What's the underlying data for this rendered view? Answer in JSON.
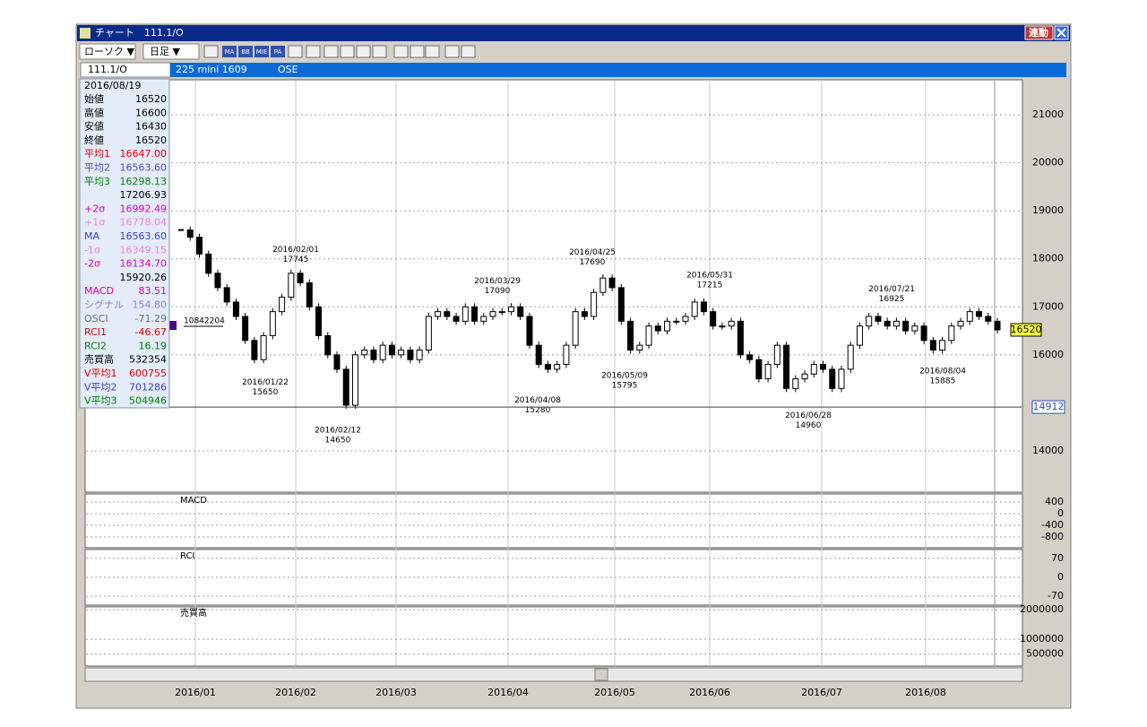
{
  "window": {
    "title": "チャート　111.1/O",
    "link_button": "連動"
  },
  "toolbar": {
    "chart_type": "ローソク ▼",
    "period": "日足 ▼",
    "icons": [
      "MA",
      "BB",
      "MIE",
      "PA"
    ]
  },
  "symbol_bar": {
    "code": "111.1/O",
    "name": "225 mini 1609",
    "exchange": "OSE"
  },
  "info_panel": {
    "date": "2016/08/19",
    "rows": [
      {
        "label": "始値",
        "value": "16520",
        "color": "#000000"
      },
      {
        "label": "高値",
        "value": "16600",
        "color": "#000000"
      },
      {
        "label": "安値",
        "value": "16430",
        "color": "#000000"
      },
      {
        "label": "終値",
        "value": "16520",
        "color": "#000000"
      },
      {
        "label": "平均1",
        "value": "16647.00",
        "color": "#e00000"
      },
      {
        "label": "平均2",
        "value": "16563.60",
        "color": "#5050c0"
      },
      {
        "label": "平均3",
        "value": "16298.13",
        "color": "#008000"
      },
      {
        "value": "17206.93",
        "color": "#000000"
      },
      {
        "label": "+2σ",
        "value": "16992.49",
        "color": "#e000c0"
      },
      {
        "label": "+1σ",
        "value": "16778.04",
        "color": "#f080e0"
      },
      {
        "label": "MA",
        "value": "16563.60",
        "color": "#4040c0"
      },
      {
        "label": "-1σ",
        "value": "16349.15",
        "color": "#f080e0"
      },
      {
        "label": "-2σ",
        "value": "16134.70",
        "color": "#e000c0"
      },
      {
        "value": "15920.26",
        "color": "#000000"
      },
      {
        "label": "MACD",
        "value": "83.51",
        "color": "#e000a0"
      },
      {
        "label": "シグナル",
        "value": "154.80",
        "color": "#9080e0"
      },
      {
        "label": "OSCI",
        "value": "-71.29",
        "color": "#707070"
      },
      {
        "label": "RCI1",
        "value": "-46.67",
        "color": "#e00000"
      },
      {
        "label": "RCI2",
        "value": "16.19",
        "color": "#008000"
      },
      {
        "label": "売買高",
        "value": "532354",
        "color": "#000000"
      },
      {
        "label": "V平均1",
        "value": "600755",
        "color": "#e00000"
      },
      {
        "label": "V平均2",
        "value": "701286",
        "color": "#4040c0"
      },
      {
        "label": "V平均3",
        "value": "504946",
        "color": "#008000"
      }
    ]
  },
  "price_chart": {
    "ylim": [
      13140,
      21730
    ],
    "yticks": [
      21000,
      20000,
      19000,
      18000,
      17000,
      16000,
      14000
    ],
    "closes": [
      18600,
      18450,
      18100,
      17700,
      17400,
      17100,
      16800,
      16300,
      15900,
      16400,
      16900,
      17200,
      17700,
      17500,
      17000,
      16400,
      16000,
      15700,
      14950,
      16000,
      16100,
      15900,
      16200,
      16000,
      16100,
      15900,
      16100,
      16800,
      16900,
      16800,
      16700,
      17000,
      16700,
      16800,
      16900,
      16900,
      17000,
      16800,
      16200,
      15800,
      15700,
      15800,
      16200,
      16900,
      16800,
      17300,
      17600,
      17400,
      16700,
      16100,
      16200,
      16600,
      16500,
      16700,
      16700,
      16800,
      17100,
      16900,
      16600,
      16600,
      16700,
      16000,
      15900,
      15500,
      15800,
      16200,
      15300,
      15500,
      15600,
      15800,
      15700,
      15300,
      15700,
      16200,
      16600,
      16800,
      16700,
      16600,
      16700,
      16500,
      16600,
      16300,
      16100,
      16300,
      16600,
      16700,
      16900,
      16800,
      16700,
      16520
    ],
    "cursor_price": 14912,
    "volume_marker": "10842204",
    "annotations": [
      {
        "date": "2016/01/22",
        "value": 15650,
        "kind": "low"
      },
      {
        "date": "2016/02/01",
        "value": 17745,
        "kind": "high"
      },
      {
        "date": "2016/02/12",
        "value": 14650,
        "kind": "low"
      },
      {
        "date": "2016/03/29",
        "value": 17090,
        "kind": "high"
      },
      {
        "date": "2016/04/08",
        "value": 15280,
        "kind": "low"
      },
      {
        "date": "2016/04/25",
        "value": 17690,
        "kind": "high"
      },
      {
        "date": "2016/05/09",
        "value": 15795,
        "kind": "low"
      },
      {
        "date": "2016/05/31",
        "value": 17215,
        "kind": "high"
      },
      {
        "date": "2016/06/28",
        "value": 14960,
        "kind": "low"
      },
      {
        "date": "2016/07/21",
        "value": 16925,
        "kind": "high"
      },
      {
        "date": "2016/08/04",
        "value": 15885,
        "kind": "low"
      }
    ]
  },
  "macd": {
    "title": "MACD",
    "ylim": [
      -1169,
      677
    ],
    "yticks": [
      400,
      0,
      -400,
      -800
    ]
  },
  "rci": {
    "title": "RCI",
    "ylim": [
      -103,
      103
    ],
    "yticks": [
      70,
      0,
      -70
    ]
  },
  "volume": {
    "title": "売買高",
    "ylim": [
      93750,
      2093750
    ],
    "yticks": [
      2000000,
      1000000,
      500000
    ]
  },
  "date_labels": [
    "2016/01",
    "2016/02",
    "2016/03",
    "2016/04",
    "2016/05",
    "2016/06",
    "2016/07",
    "2016/08"
  ]
}
